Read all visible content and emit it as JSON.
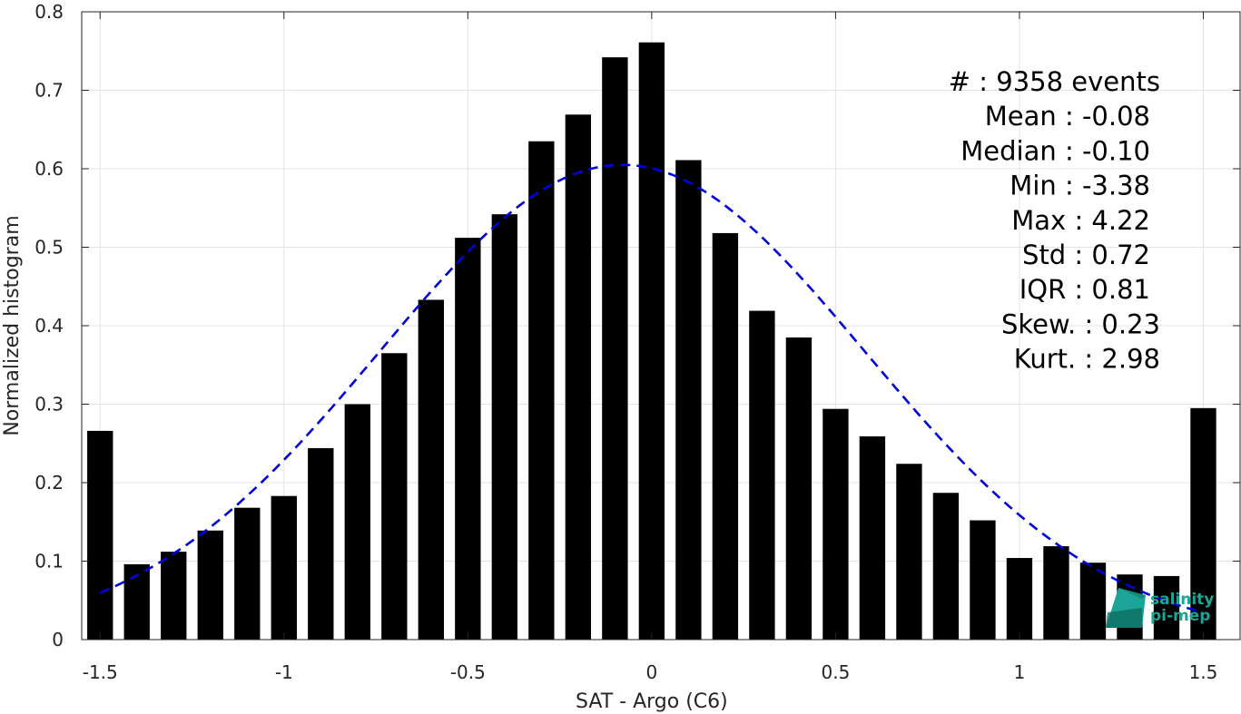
{
  "chart_data": {
    "type": "bar",
    "xlabel": "SAT - Argo (C6)",
    "ylabel": "Normalized histogram",
    "xlim": [
      -1.55,
      1.6
    ],
    "ylim": [
      0,
      0.8
    ],
    "grid": true,
    "x_ticks": [
      -1.5,
      -1,
      -0.5,
      0,
      0.5,
      1,
      1.5
    ],
    "x_tick_labels": [
      "-1.5",
      "-1",
      "-0.5",
      "0",
      "0.5",
      "1",
      "1.5"
    ],
    "y_ticks": [
      0,
      0.1,
      0.2,
      0.3,
      0.4,
      0.5,
      0.6,
      0.7,
      0.8
    ],
    "y_tick_labels": [
      "0",
      "0.1",
      "0.2",
      "0.3",
      "0.4",
      "0.5",
      "0.6",
      "0.7",
      "0.8"
    ],
    "bar_color": "#000000",
    "x": [
      -1.5,
      -1.4,
      -1.3,
      -1.2,
      -1.1,
      -1.0,
      -0.9,
      -0.8,
      -0.7,
      -0.6,
      -0.5,
      -0.4,
      -0.3,
      -0.2,
      -0.1,
      0.0,
      0.1,
      0.2,
      0.3,
      0.4,
      0.5,
      0.6,
      0.7,
      0.8,
      0.9,
      1.0,
      1.1,
      1.2,
      1.3,
      1.4,
      1.5
    ],
    "values": [
      0.266,
      0.096,
      0.112,
      0.139,
      0.168,
      0.183,
      0.244,
      0.3,
      0.365,
      0.433,
      0.512,
      0.542,
      0.635,
      0.669,
      0.742,
      0.761,
      0.611,
      0.518,
      0.419,
      0.385,
      0.294,
      0.259,
      0.224,
      0.187,
      0.152,
      0.104,
      0.119,
      0.098,
      0.083,
      0.081,
      0.295
    ],
    "fit_curve": {
      "type": "normal",
      "mean": -0.08,
      "std": 0.66,
      "peak": 0.605,
      "x_range": [
        -1.5,
        1.5
      ],
      "color": "#0000dd",
      "style": "dashed"
    },
    "annotations": [
      "#  : 9358 events",
      "Mean : -0.08",
      "Median : -0.10",
      "Min : -3.38",
      "Max : 4.22",
      "Std : 0.72",
      "IQR : 0.81",
      "Skew. : 0.23",
      "Kurt. : 2.98"
    ]
  },
  "watermark": {
    "line1": "salinity",
    "line2": "pi-mep",
    "color": "#1aa596"
  }
}
